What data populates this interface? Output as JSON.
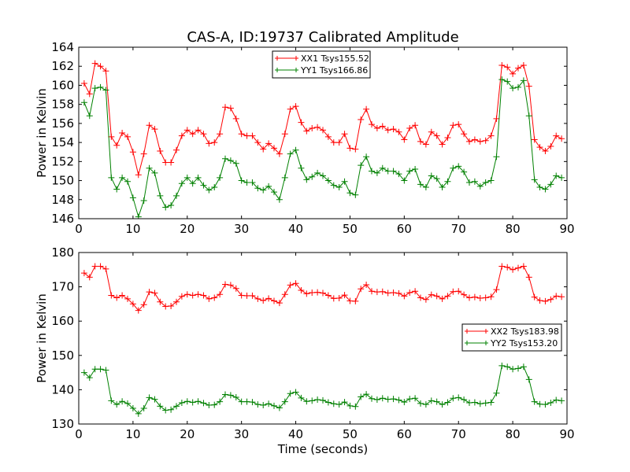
{
  "figure": {
    "title": "CAS-A, ID:19737 Calibrated Amplitude"
  },
  "colors": {
    "red": "#ff0000",
    "green": "#008000"
  },
  "chart_data": [
    {
      "type": "line",
      "title": "CAS-A, ID:19737 Calibrated Amplitude",
      "xlabel": "",
      "ylabel": "Power in Kelvin",
      "xlim": [
        0,
        90
      ],
      "ylim": [
        146,
        164
      ],
      "xticks": [
        0,
        10,
        20,
        30,
        40,
        50,
        60,
        70,
        80,
        90
      ],
      "yticks": [
        146,
        148,
        150,
        152,
        154,
        156,
        158,
        160,
        162,
        164
      ],
      "legend_position": "top-center",
      "grid": false,
      "series": [
        {
          "name": "XX1 Tsys155.52",
          "color": "#ff0000",
          "x": [
            1,
            2,
            3,
            4,
            5,
            6,
            7,
            8,
            9,
            10,
            11,
            12,
            13,
            14,
            15,
            16,
            17,
            18,
            19,
            20,
            21,
            22,
            23,
            24,
            25,
            26,
            27,
            28,
            29,
            30,
            31,
            32,
            33,
            34,
            35,
            36,
            37,
            38,
            39,
            40,
            41,
            42,
            43,
            44,
            45,
            46,
            47,
            48,
            49,
            50,
            51,
            52,
            53,
            54,
            55,
            56,
            57,
            58,
            59,
            60,
            61,
            62,
            63,
            64,
            65,
            66,
            67,
            68,
            69,
            70,
            71,
            72,
            73,
            74,
            75,
            76,
            77,
            78,
            79,
            80,
            81,
            82,
            83,
            84,
            85,
            86,
            87,
            88,
            89
          ],
          "values": [
            160.2,
            159.1,
            162.3,
            162.0,
            161.5,
            154.6,
            153.7,
            155.0,
            154.6,
            153.0,
            150.6,
            152.8,
            155.8,
            155.4,
            153.1,
            151.9,
            151.9,
            153.2,
            154.7,
            155.3,
            154.9,
            155.3,
            154.9,
            153.9,
            154.0,
            154.9,
            157.7,
            157.6,
            156.5,
            154.9,
            154.7,
            154.7,
            154.0,
            153.3,
            153.9,
            153.4,
            152.8,
            154.9,
            157.5,
            157.8,
            156.1,
            155.2,
            155.5,
            155.6,
            155.3,
            154.6,
            154.0,
            154.0,
            154.9,
            153.4,
            153.3,
            156.4,
            157.5,
            155.9,
            155.5,
            155.7,
            155.3,
            155.4,
            155.1,
            154.3,
            155.5,
            155.8,
            154.1,
            153.8,
            155.1,
            154.7,
            153.8,
            154.5,
            155.8,
            155.9,
            154.9,
            154.1,
            154.3,
            154.1,
            154.2,
            154.7,
            156.5,
            162.1,
            161.9,
            161.2,
            161.8,
            162.1,
            159.9,
            154.3,
            153.5,
            153.1,
            153.6,
            154.7,
            154.4
          ]
        },
        {
          "name": "YY1 Tsys166.86",
          "color": "#008000",
          "x": [
            1,
            2,
            3,
            4,
            5,
            6,
            7,
            8,
            9,
            10,
            11,
            12,
            13,
            14,
            15,
            16,
            17,
            18,
            19,
            20,
            21,
            22,
            23,
            24,
            25,
            26,
            27,
            28,
            29,
            30,
            31,
            32,
            33,
            34,
            35,
            36,
            37,
            38,
            39,
            40,
            41,
            42,
            43,
            44,
            45,
            46,
            47,
            48,
            49,
            50,
            51,
            52,
            53,
            54,
            55,
            56,
            57,
            58,
            59,
            60,
            61,
            62,
            63,
            64,
            65,
            66,
            67,
            68,
            69,
            70,
            71,
            72,
            73,
            74,
            75,
            76,
            77,
            78,
            79,
            80,
            81,
            82,
            83,
            84,
            85,
            86,
            87,
            88,
            89
          ],
          "values": [
            158.2,
            156.8,
            159.7,
            159.8,
            159.5,
            150.3,
            149.1,
            150.3,
            149.9,
            148.2,
            146.2,
            147.9,
            151.3,
            150.8,
            148.4,
            147.2,
            147.4,
            148.4,
            149.7,
            150.3,
            149.7,
            150.3,
            149.5,
            149.0,
            149.3,
            150.3,
            152.3,
            152.1,
            151.8,
            150.0,
            149.8,
            149.8,
            149.2,
            149.0,
            149.4,
            148.8,
            148.0,
            150.3,
            152.8,
            153.2,
            151.3,
            150.1,
            150.4,
            150.8,
            150.5,
            150.0,
            149.5,
            149.3,
            149.9,
            148.7,
            148.5,
            151.6,
            152.5,
            151.0,
            150.8,
            151.3,
            151.0,
            151.0,
            150.7,
            150.0,
            151.0,
            151.2,
            149.6,
            149.3,
            150.5,
            150.2,
            149.3,
            149.9,
            151.3,
            151.5,
            150.9,
            149.8,
            149.9,
            149.4,
            149.8,
            150.0,
            152.5,
            160.6,
            160.4,
            159.7,
            159.8,
            160.5,
            156.8,
            150.1,
            149.3,
            149.1,
            149.6,
            150.5,
            150.3
          ]
        }
      ]
    },
    {
      "type": "line",
      "title": "",
      "xlabel": "Time (seconds)",
      "ylabel": "Power in Kelvin",
      "xlim": [
        0,
        90
      ],
      "ylim": [
        130,
        180
      ],
      "xticks": [
        0,
        10,
        20,
        30,
        40,
        50,
        60,
        70,
        80,
        90
      ],
      "yticks": [
        130,
        140,
        150,
        160,
        170,
        180
      ],
      "legend_position": "center-right",
      "grid": false,
      "series": [
        {
          "name": "XX2 Tsys183.98",
          "color": "#ff0000",
          "x": [
            1,
            2,
            3,
            4,
            5,
            6,
            7,
            8,
            9,
            10,
            11,
            12,
            13,
            14,
            15,
            16,
            17,
            18,
            19,
            20,
            21,
            22,
            23,
            24,
            25,
            26,
            27,
            28,
            29,
            30,
            31,
            32,
            33,
            34,
            35,
            36,
            37,
            38,
            39,
            40,
            41,
            42,
            43,
            44,
            45,
            46,
            47,
            48,
            49,
            50,
            51,
            52,
            53,
            54,
            55,
            56,
            57,
            58,
            59,
            60,
            61,
            62,
            63,
            64,
            65,
            66,
            67,
            68,
            69,
            70,
            71,
            72,
            73,
            74,
            75,
            76,
            77,
            78,
            79,
            80,
            81,
            82,
            83,
            84,
            85,
            86,
            87,
            88,
            89
          ],
          "values": [
            174.0,
            172.8,
            176.0,
            176.0,
            175.2,
            167.5,
            166.8,
            167.5,
            166.5,
            165.0,
            163.1,
            164.8,
            168.5,
            168.2,
            165.6,
            164.3,
            164.4,
            165.6,
            167.2,
            167.8,
            167.5,
            167.8,
            167.5,
            166.5,
            166.8,
            167.8,
            170.7,
            170.5,
            169.5,
            167.5,
            167.4,
            167.4,
            166.5,
            166.0,
            166.6,
            165.9,
            165.3,
            167.8,
            170.5,
            171.0,
            169.0,
            168.0,
            168.3,
            168.4,
            168.2,
            167.5,
            166.6,
            166.7,
            167.6,
            165.9,
            165.8,
            169.4,
            170.6,
            168.7,
            168.5,
            168.6,
            168.2,
            168.3,
            168.1,
            167.3,
            168.3,
            168.7,
            166.8,
            166.3,
            167.7,
            167.3,
            166.5,
            167.3,
            168.6,
            168.7,
            167.7,
            166.8,
            167.0,
            166.7,
            166.8,
            167.1,
            169.2,
            176.0,
            175.7,
            175.0,
            175.5,
            176.0,
            172.8,
            167.0,
            166.0,
            165.8,
            166.3,
            167.3,
            167.1
          ]
        },
        {
          "name": "YY2 Tsys153.20",
          "color": "#008000",
          "x": [
            1,
            2,
            3,
            4,
            5,
            6,
            7,
            8,
            9,
            10,
            11,
            12,
            13,
            14,
            15,
            16,
            17,
            18,
            19,
            20,
            21,
            22,
            23,
            24,
            25,
            26,
            27,
            28,
            29,
            30,
            31,
            32,
            33,
            34,
            35,
            36,
            37,
            38,
            39,
            40,
            41,
            42,
            43,
            44,
            45,
            46,
            47,
            48,
            49,
            50,
            51,
            52,
            53,
            54,
            55,
            56,
            57,
            58,
            59,
            60,
            61,
            62,
            63,
            64,
            65,
            66,
            67,
            68,
            69,
            70,
            71,
            72,
            73,
            74,
            75,
            76,
            77,
            78,
            79,
            80,
            81,
            82,
            83,
            84,
            85,
            86,
            87,
            88,
            89
          ],
          "values": [
            145.0,
            143.5,
            146.0,
            146.0,
            145.7,
            136.8,
            135.7,
            136.6,
            136.0,
            134.6,
            133.0,
            134.6,
            137.7,
            137.2,
            135.2,
            134.0,
            134.2,
            135.2,
            136.2,
            136.6,
            136.3,
            136.6,
            136.1,
            135.5,
            135.6,
            136.5,
            138.6,
            138.4,
            137.8,
            136.5,
            136.5,
            136.4,
            135.7,
            135.5,
            135.9,
            135.3,
            134.7,
            136.5,
            138.9,
            139.3,
            137.6,
            136.6,
            136.8,
            137.1,
            136.9,
            136.3,
            135.9,
            135.7,
            136.4,
            135.3,
            135.1,
            137.9,
            138.7,
            137.4,
            137.1,
            137.5,
            137.2,
            137.3,
            137.0,
            136.4,
            137.3,
            137.5,
            136.0,
            135.7,
            136.8,
            136.5,
            135.7,
            136.3,
            137.5,
            137.7,
            137.1,
            136.2,
            136.3,
            135.9,
            136.1,
            136.3,
            139.0,
            147.0,
            146.7,
            146.0,
            146.2,
            146.7,
            143.0,
            136.5,
            135.8,
            135.7,
            136.2,
            137.0,
            136.8
          ]
        }
      ]
    }
  ]
}
